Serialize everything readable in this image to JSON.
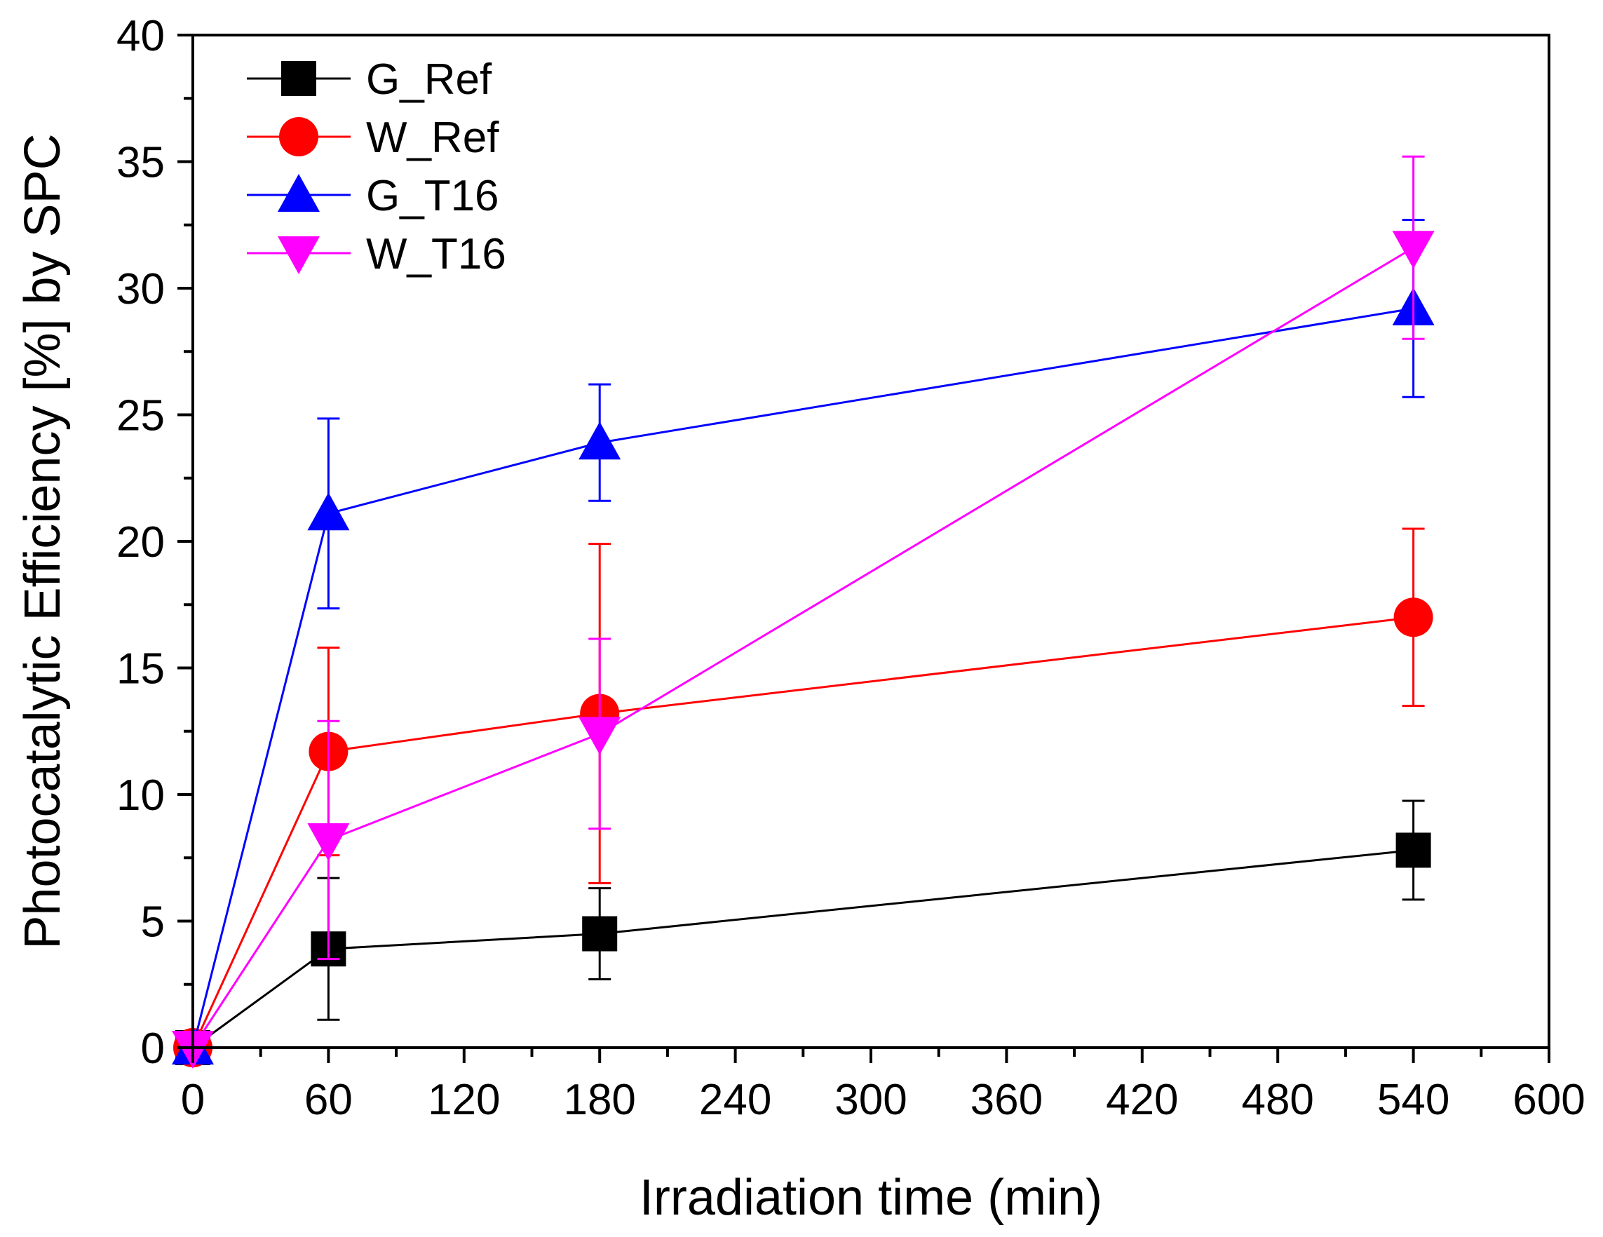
{
  "chart_data": {
    "type": "line",
    "title": "",
    "xlabel": "Irradiation time (min)",
    "ylabel": "Photocatalytic Efficiency [%] by SPC",
    "xlim": [
      0,
      600
    ],
    "ylim": [
      0,
      40
    ],
    "x_major_ticks": [
      0,
      60,
      120,
      180,
      240,
      300,
      360,
      420,
      480,
      540,
      600
    ],
    "x_tick_labels": [
      "0",
      "60",
      "120",
      "180",
      "240",
      "300",
      "360",
      "420",
      "480",
      "540",
      "600"
    ],
    "x_minor_step": 30,
    "y_major_ticks": [
      0,
      5,
      10,
      15,
      20,
      25,
      30,
      35,
      40
    ],
    "y_tick_labels": [
      "0",
      "5",
      "10",
      "15",
      "20",
      "25",
      "30",
      "35",
      "40"
    ],
    "y_minor_step": 2.5,
    "grid": false,
    "legend_position": "top-left",
    "series": [
      {
        "name": "G_Ref",
        "color": "#000000",
        "marker": "square",
        "x": [
          0,
          60,
          180,
          540
        ],
        "y": [
          0,
          3.9,
          4.5,
          7.8
        ],
        "err": [
          0,
          2.8,
          1.8,
          1.95
        ]
      },
      {
        "name": "W_Ref",
        "color": "#ff0000",
        "marker": "circle",
        "x": [
          0,
          60,
          180,
          540
        ],
        "y": [
          0,
          11.7,
          13.2,
          17.0
        ],
        "err": [
          0,
          4.1,
          6.7,
          3.5
        ]
      },
      {
        "name": "G_T16",
        "color": "#0000ff",
        "marker": "triangle-up",
        "x": [
          0,
          60,
          180,
          540
        ],
        "y": [
          0,
          21.1,
          23.9,
          29.2
        ],
        "err": [
          0,
          3.75,
          2.3,
          3.5
        ]
      },
      {
        "name": "W_T16",
        "color": "#ff00ff",
        "marker": "triangle-down",
        "x": [
          0,
          60,
          180,
          540
        ],
        "y": [
          0,
          8.2,
          12.4,
          31.6
        ],
        "err": [
          0,
          4.7,
          3.75,
          3.6
        ]
      }
    ]
  }
}
